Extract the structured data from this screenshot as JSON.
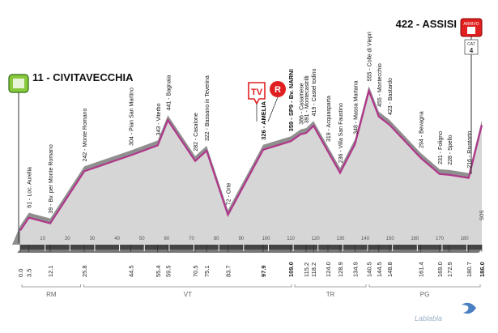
{
  "chart_data": {
    "type": "area",
    "x_unit": "km",
    "start": {
      "name": "CIVITAVECCHIA",
      "altitude": 11
    },
    "finish": {
      "name": "ASSISI",
      "altitude": 422,
      "label": "ARRIVO"
    },
    "finish_category": {
      "label": "CAT",
      "value": "4"
    },
    "badges": [
      "TV",
      "R"
    ],
    "profile": [
      {
        "km": 0,
        "alt": 11
      },
      {
        "km": 3.5,
        "alt": 61
      },
      {
        "km": 12.1,
        "alt": 39
      },
      {
        "km": 25.8,
        "alt": 242
      },
      {
        "km": 44.5,
        "alt": 304
      },
      {
        "km": 55.4,
        "alt": 343
      },
      {
        "km": 59.5,
        "alt": 441
      },
      {
        "km": 70.5,
        "alt": 282
      },
      {
        "km": 75.1,
        "alt": 322
      },
      {
        "km": 83.7,
        "alt": 72
      },
      {
        "km": 97.9,
        "alt": 326
      },
      {
        "km": 109.0,
        "alt": 359
      },
      {
        "km": 113.0,
        "alt": 386
      },
      {
        "km": 115.2,
        "alt": 391
      },
      {
        "km": 118.2,
        "alt": 419
      },
      {
        "km": 124.0,
        "alt": 319
      },
      {
        "km": 128.9,
        "alt": 236
      },
      {
        "km": 134.9,
        "alt": 348
      },
      {
        "km": 140.5,
        "alt": 555
      },
      {
        "km": 144.5,
        "alt": 455
      },
      {
        "km": 148.8,
        "alt": 423
      },
      {
        "km": 161.4,
        "alt": 294
      },
      {
        "km": 169.0,
        "alt": 231
      },
      {
        "km": 172.9,
        "alt": 228
      },
      {
        "km": 180.7,
        "alt": 216
      },
      {
        "km": 186.0,
        "alt": 422
      }
    ],
    "place_labels": [
      {
        "km": 3.5,
        "text": "61 - Loc. Aurelia"
      },
      {
        "km": 12.1,
        "text": "39 - Bv. per Monte Romano"
      },
      {
        "km": 25.8,
        "text": "242 - Monte Romano"
      },
      {
        "km": 44.5,
        "text": "304 - Pian San Martino"
      },
      {
        "km": 55.4,
        "text": "343 - Viterbo"
      },
      {
        "km": 59.5,
        "text": "441 - Bagnaia"
      },
      {
        "km": 70.5,
        "text": "282 - Casalone"
      },
      {
        "km": 75.1,
        "text": "322 - Bassano in Teverina"
      },
      {
        "km": 83.7,
        "text": "72 - Orte"
      },
      {
        "km": 97.9,
        "text": "326 - AMELIA",
        "bold": true
      },
      {
        "km": 109.0,
        "text": "359 - SP9 - Bv. NARNI",
        "bold": true
      },
      {
        "km": 113.0,
        "text": "386 - Casamese"
      },
      {
        "km": 115.2,
        "text": "391 - Montecastrilli"
      },
      {
        "km": 118.2,
        "text": "419 - Castel todino"
      },
      {
        "km": 124.0,
        "text": "319 - Acquasparta"
      },
      {
        "km": 128.9,
        "text": "236 - Villa San Faustino"
      },
      {
        "km": 134.9,
        "text": "348 - Massa Martana"
      },
      {
        "km": 140.5,
        "text": "555 - Colle di Viepri"
      },
      {
        "km": 144.5,
        "text": "455 - Montecchio"
      },
      {
        "km": 148.8,
        "text": "423 - Bastardo"
      },
      {
        "km": 161.4,
        "text": "294 - Bevagna"
      },
      {
        "km": 169.0,
        "text": "231 - Foligno"
      },
      {
        "km": 172.9,
        "text": "228 - Spello"
      },
      {
        "km": 180.7,
        "text": "216 - Rivotorto"
      }
    ],
    "km_labels": [
      "0.0",
      "3.5",
      "12.1",
      "25.8",
      "44.5",
      "55.4",
      "59.5",
      "70.5",
      "75.1",
      "83.7",
      "97.9",
      "109.0",
      "115.2",
      "118.2",
      "124.0",
      "128.9",
      "134.9",
      "140.5",
      "144.5",
      "148.8",
      "161.4",
      "169.0",
      "172.9",
      "180.7",
      "186.0"
    ],
    "bold_km": [
      "97.9",
      "109.0",
      "186.0"
    ],
    "ticks": [
      10,
      20,
      30,
      40,
      50,
      60,
      70,
      80,
      90,
      100,
      110,
      120,
      130,
      140,
      150,
      160,
      170,
      180
    ],
    "finish_marker": "SOS",
    "provinces": [
      {
        "code": "RM",
        "from": 0,
        "to": 25
      },
      {
        "code": "VT",
        "from": 25,
        "to": 110
      },
      {
        "code": "TR",
        "from": 110,
        "to": 140
      },
      {
        "code": "PG",
        "from": 140,
        "to": 186
      }
    ],
    "colors": {
      "profile_fill": "#d6d6d6",
      "profile_line": "#b0368a",
      "ridge": "#8f8f8f",
      "band": "#444444"
    }
  },
  "watermark": "Lablabla"
}
